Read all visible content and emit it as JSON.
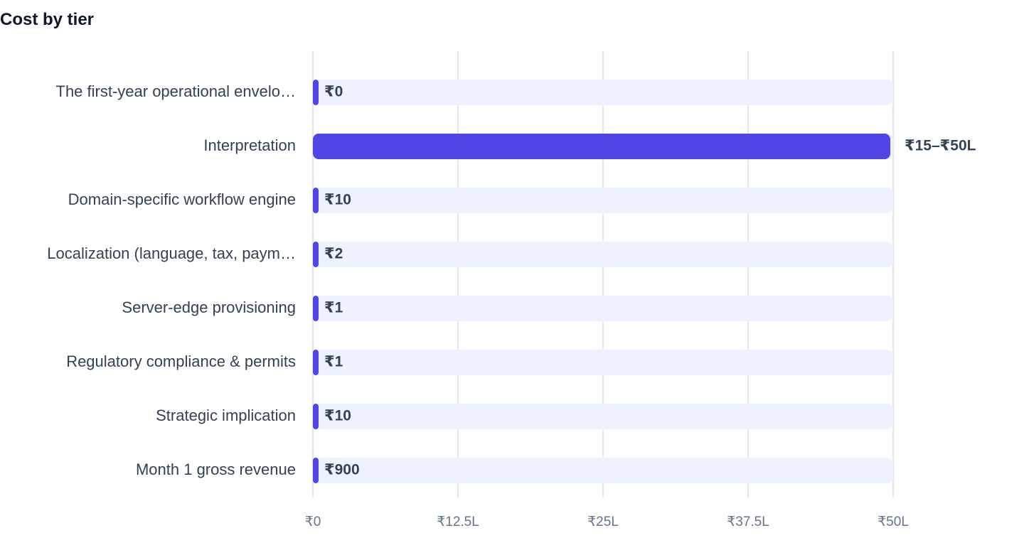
{
  "chart_data": {
    "type": "bar",
    "orientation": "horizontal",
    "title": "Cost by tier",
    "xlabel": "",
    "ylabel": "",
    "xlim": [
      0,
      5000000
    ],
    "grid": "vertical",
    "legend": "none",
    "categories": [
      "The first-year operational envelo…",
      "Interpretation",
      "Domain-specific workflow engine",
      "Localization (language, tax, paym…",
      "Server-edge provisioning",
      "Regulatory compliance & permits",
      "Strategic implication",
      "Month 1 gross revenue"
    ],
    "values": [
      0,
      5000000,
      10,
      2,
      1,
      1,
      10,
      900
    ],
    "data_labels": [
      "₹0",
      "₹15–₹50L",
      "₹10",
      "₹2",
      "₹1",
      "₹1",
      "₹10",
      "₹900"
    ],
    "ticks": [
      {
        "value": 0,
        "label": "₹0"
      },
      {
        "value": 1250000,
        "label": "₹12.5L"
      },
      {
        "value": 2500000,
        "label": "₹25L"
      },
      {
        "value": 3750000,
        "label": "₹37.5L"
      },
      {
        "value": 5000000,
        "label": "₹50L"
      }
    ],
    "colors": {
      "bar": "#4f46e5",
      "track": "#eef2ff",
      "grid": "#e2e8f0",
      "axis": "#e2e8f0"
    }
  }
}
